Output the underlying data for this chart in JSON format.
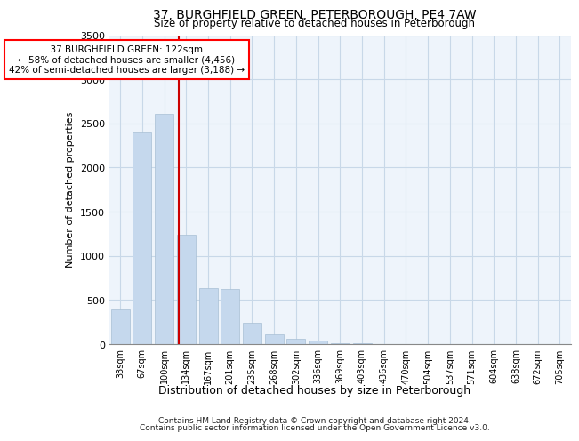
{
  "title1": "37, BURGHFIELD GREEN, PETERBOROUGH, PE4 7AW",
  "title2": "Size of property relative to detached houses in Peterborough",
  "xlabel": "Distribution of detached houses by size in Peterborough",
  "ylabel": "Number of detached properties",
  "footer1": "Contains HM Land Registry data © Crown copyright and database right 2024.",
  "footer2": "Contains public sector information licensed under the Open Government Licence v3.0.",
  "annotation_line1": "  37 BURGHFIELD GREEN: 122sqm  ",
  "annotation_line2": "← 58% of detached houses are smaller (4,456)",
  "annotation_line3": "42% of semi-detached houses are larger (3,188) →",
  "bar_color": "#c5d8ed",
  "bar_edge_color": "#a8bfd4",
  "grid_color": "#c8d8e8",
  "bg_color": "#eef4fb",
  "red_line_color": "#cc0000",
  "categories": [
    "33sqm",
    "67sqm",
    "100sqm",
    "134sqm",
    "167sqm",
    "201sqm",
    "235sqm",
    "268sqm",
    "302sqm",
    "336sqm",
    "369sqm",
    "403sqm",
    "436sqm",
    "470sqm",
    "504sqm",
    "537sqm",
    "571sqm",
    "604sqm",
    "638sqm",
    "672sqm",
    "705sqm"
  ],
  "values": [
    390,
    2400,
    2610,
    1240,
    630,
    620,
    245,
    110,
    60,
    40,
    15,
    10,
    5,
    2,
    1,
    1,
    0,
    0,
    0,
    0,
    0
  ],
  "ylim": [
    0,
    3500
  ],
  "yticks": [
    0,
    500,
    1000,
    1500,
    2000,
    2500,
    3000,
    3500
  ],
  "red_line_x": 2.647
}
